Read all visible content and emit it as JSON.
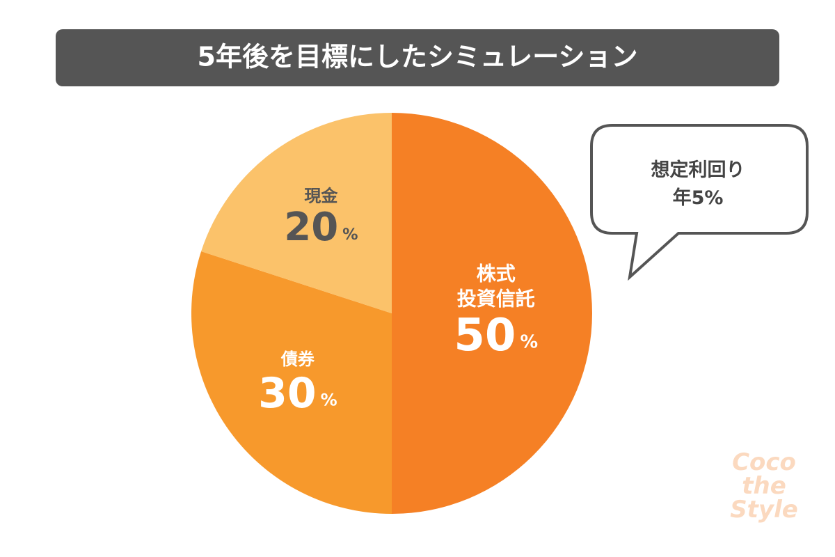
{
  "chart_data": {
    "type": "pie",
    "title": "5年後を目標にしたシミュレーション",
    "categories": [
      "株式\n投資信託",
      "債券",
      "現金"
    ],
    "values": [
      50,
      30,
      20
    ],
    "value_labels": [
      "50%",
      "30%",
      "20%"
    ],
    "colors": [
      "#f58025",
      "#f7992c",
      "#fbc26a"
    ],
    "annotation": "想定利回り\n年5%",
    "watermark": "Coco\nthe\nStyle"
  }
}
